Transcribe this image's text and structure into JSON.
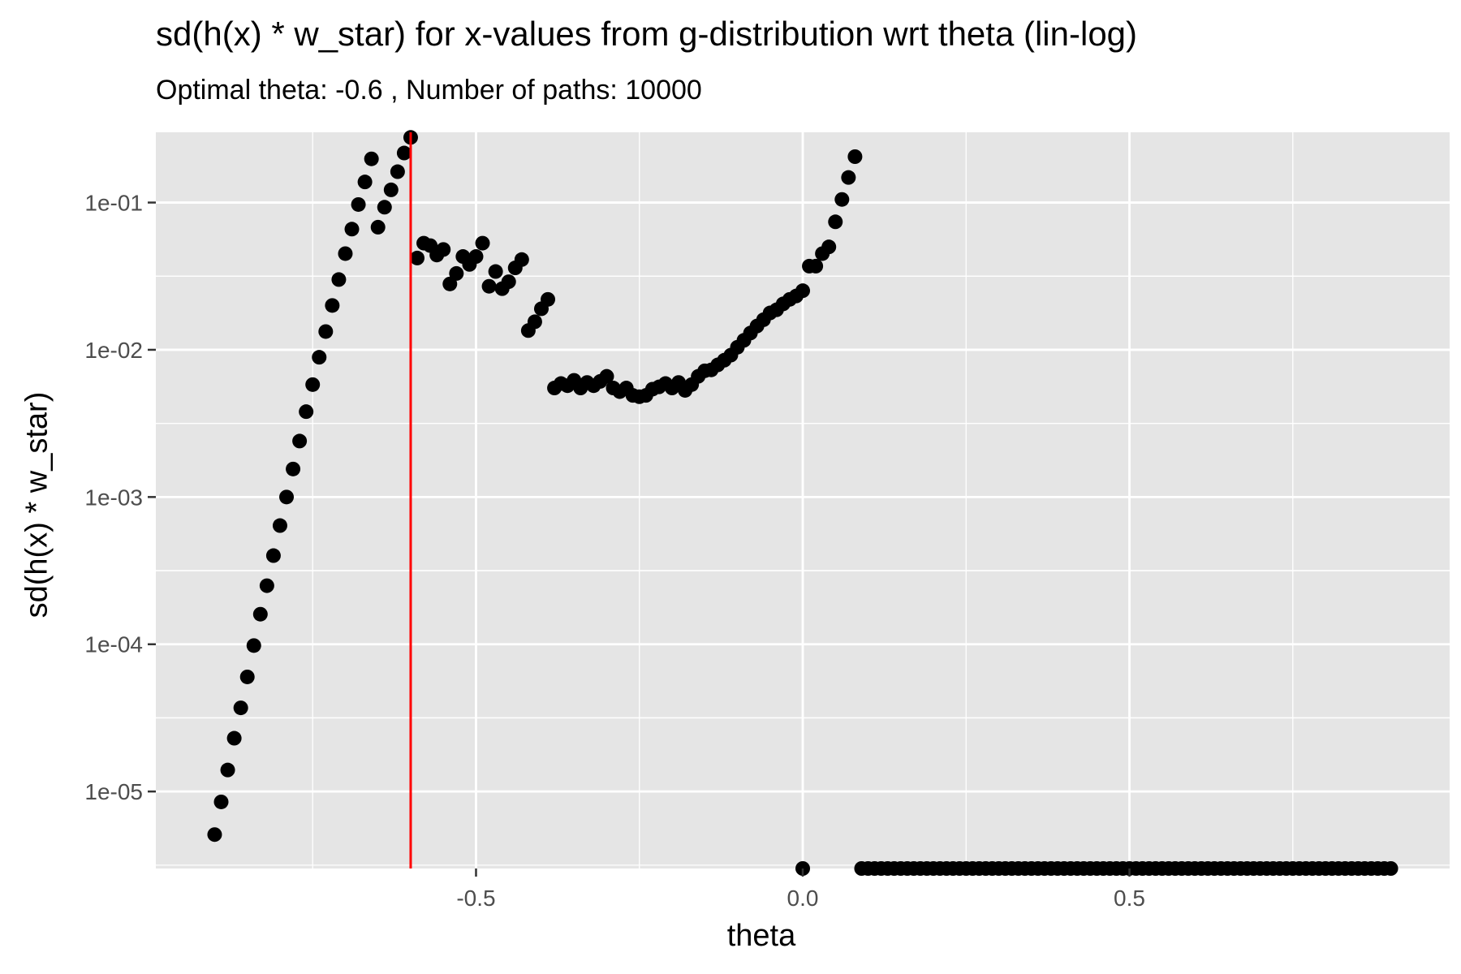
{
  "chart_data": {
    "type": "scatter",
    "title": "sd(h(x) * w_star) for x-values from g-distribution wrt theta (lin-log)",
    "subtitle": "Optimal theta:  -0.6 , Number of paths:  10000",
    "xlabel": "theta",
    "ylabel": "sd(h(x) * w_star)",
    "x_scale": "linear",
    "y_scale": "log10",
    "xlim": [
      -0.99,
      0.99
    ],
    "ylim": [
      3e-06,
      0.3
    ],
    "x_ticks": [
      -0.5,
      0.0,
      0.5
    ],
    "x_tick_labels": [
      "-0.5",
      "0.0",
      "0.5"
    ],
    "y_ticks": [
      1e-05,
      0.0001,
      0.001,
      0.01,
      0.1
    ],
    "y_tick_labels": [
      "1e-05",
      "1e-04",
      "1e-03",
      "1e-02",
      "1e-01"
    ],
    "grid": true,
    "vline": {
      "x": -0.6,
      "color": "#ff0000"
    },
    "point_color": "#000000",
    "panel_background": "#e5e5e5",
    "series": [
      {
        "points": [
          [
            -0.9,
            5.1e-06
          ],
          [
            -0.89,
            8.5e-06
          ],
          [
            -0.88,
            1.4e-05
          ],
          [
            -0.87,
            2.3e-05
          ],
          [
            -0.86,
            3.7e-05
          ],
          [
            -0.85,
            6e-05
          ],
          [
            -0.84,
            9.8e-05
          ],
          [
            -0.83,
            0.00016
          ],
          [
            -0.82,
            0.00025
          ],
          [
            -0.81,
            0.0004
          ],
          [
            -0.8,
            0.00064
          ],
          [
            -0.79,
            0.001
          ],
          [
            -0.78,
            0.00155
          ],
          [
            -0.77,
            0.0024
          ],
          [
            -0.76,
            0.0038
          ],
          [
            -0.75,
            0.0058
          ],
          [
            -0.74,
            0.0089
          ],
          [
            -0.73,
            0.0133
          ],
          [
            -0.72,
            0.02
          ],
          [
            -0.71,
            0.03
          ],
          [
            -0.7,
            0.045
          ],
          [
            -0.69,
            0.066
          ],
          [
            -0.68,
            0.097
          ],
          [
            -0.67,
            0.138
          ],
          [
            -0.66,
            0.198
          ],
          [
            -0.65,
            0.068
          ],
          [
            -0.64,
            0.093
          ],
          [
            -0.63,
            0.122
          ],
          [
            -0.62,
            0.162
          ],
          [
            -0.61,
            0.217
          ],
          [
            -0.6,
            0.277
          ],
          [
            -0.59,
            0.042
          ],
          [
            -0.58,
            0.053
          ],
          [
            -0.57,
            0.051
          ],
          [
            -0.56,
            0.044
          ],
          [
            -0.55,
            0.048
          ],
          [
            -0.54,
            0.028
          ],
          [
            -0.53,
            0.033
          ],
          [
            -0.52,
            0.043
          ],
          [
            -0.51,
            0.038
          ],
          [
            -0.5,
            0.043
          ],
          [
            -0.49,
            0.053
          ],
          [
            -0.48,
            0.027
          ],
          [
            -0.47,
            0.034
          ],
          [
            -0.46,
            0.026
          ],
          [
            -0.45,
            0.029
          ],
          [
            -0.44,
            0.036
          ],
          [
            -0.43,
            0.041
          ],
          [
            -0.42,
            0.0135
          ],
          [
            -0.41,
            0.0155
          ],
          [
            -0.4,
            0.019
          ],
          [
            -0.39,
            0.022
          ],
          [
            -0.38,
            0.0055
          ],
          [
            -0.37,
            0.0059
          ],
          [
            -0.36,
            0.0057
          ],
          [
            -0.35,
            0.0062
          ],
          [
            -0.34,
            0.0055
          ],
          [
            -0.33,
            0.006
          ],
          [
            -0.32,
            0.0057
          ],
          [
            -0.31,
            0.0061
          ],
          [
            -0.3,
            0.0066
          ],
          [
            -0.29,
            0.0055
          ],
          [
            -0.28,
            0.0052
          ],
          [
            -0.27,
            0.0055
          ],
          [
            -0.26,
            0.0049
          ],
          [
            -0.25,
            0.0048
          ],
          [
            -0.24,
            0.0049
          ],
          [
            -0.23,
            0.0054
          ],
          [
            -0.22,
            0.0056
          ],
          [
            -0.21,
            0.0059
          ],
          [
            -0.2,
            0.0055
          ],
          [
            -0.19,
            0.006
          ],
          [
            -0.18,
            0.0053
          ],
          [
            -0.17,
            0.0058
          ],
          [
            -0.16,
            0.0066
          ],
          [
            -0.15,
            0.0072
          ],
          [
            -0.14,
            0.0073
          ],
          [
            -0.13,
            0.0079
          ],
          [
            -0.12,
            0.0085
          ],
          [
            -0.11,
            0.0092
          ],
          [
            -0.1,
            0.0104
          ],
          [
            -0.09,
            0.0116
          ],
          [
            -0.08,
            0.013
          ],
          [
            -0.07,
            0.0145
          ],
          [
            -0.06,
            0.016
          ],
          [
            -0.05,
            0.0178
          ],
          [
            -0.04,
            0.0187
          ],
          [
            -0.03,
            0.0205
          ],
          [
            -0.02,
            0.022
          ],
          [
            -0.01,
            0.0232
          ],
          [
            0.0,
            0.0252
          ],
          [
            0.01,
            0.037
          ],
          [
            0.02,
            0.037
          ],
          [
            0.03,
            0.045
          ],
          [
            0.04,
            0.05
          ],
          [
            0.05,
            0.074
          ],
          [
            0.06,
            0.105
          ],
          [
            0.07,
            0.148
          ],
          [
            0.08,
            0.205
          ],
          [
            0.0,
            3e-06
          ],
          [
            0.09,
            3e-06
          ],
          [
            0.1,
            3e-06
          ],
          [
            0.11,
            3e-06
          ],
          [
            0.12,
            3e-06
          ],
          [
            0.13,
            3e-06
          ],
          [
            0.14,
            3e-06
          ],
          [
            0.15,
            3e-06
          ],
          [
            0.16,
            3e-06
          ],
          [
            0.17,
            3e-06
          ],
          [
            0.18,
            3e-06
          ],
          [
            0.19,
            3e-06
          ],
          [
            0.2,
            3e-06
          ],
          [
            0.21,
            3e-06
          ],
          [
            0.22,
            3e-06
          ],
          [
            0.23,
            3e-06
          ],
          [
            0.24,
            3e-06
          ],
          [
            0.25,
            3e-06
          ],
          [
            0.26,
            3e-06
          ],
          [
            0.27,
            3e-06
          ],
          [
            0.28,
            3e-06
          ],
          [
            0.29,
            3e-06
          ],
          [
            0.3,
            3e-06
          ],
          [
            0.31,
            3e-06
          ],
          [
            0.32,
            3e-06
          ],
          [
            0.33,
            3e-06
          ],
          [
            0.34,
            3e-06
          ],
          [
            0.35,
            3e-06
          ],
          [
            0.36,
            3e-06
          ],
          [
            0.37,
            3e-06
          ],
          [
            0.38,
            3e-06
          ],
          [
            0.39,
            3e-06
          ],
          [
            0.4,
            3e-06
          ],
          [
            0.41,
            3e-06
          ],
          [
            0.42,
            3e-06
          ],
          [
            0.43,
            3e-06
          ],
          [
            0.44,
            3e-06
          ],
          [
            0.45,
            3e-06
          ],
          [
            0.46,
            3e-06
          ],
          [
            0.47,
            3e-06
          ],
          [
            0.48,
            3e-06
          ],
          [
            0.49,
            3e-06
          ],
          [
            0.5,
            3e-06
          ],
          [
            0.51,
            3e-06
          ],
          [
            0.52,
            3e-06
          ],
          [
            0.53,
            3e-06
          ],
          [
            0.54,
            3e-06
          ],
          [
            0.55,
            3e-06
          ],
          [
            0.56,
            3e-06
          ],
          [
            0.57,
            3e-06
          ],
          [
            0.58,
            3e-06
          ],
          [
            0.59,
            3e-06
          ],
          [
            0.6,
            3e-06
          ],
          [
            0.61,
            3e-06
          ],
          [
            0.62,
            3e-06
          ],
          [
            0.63,
            3e-06
          ],
          [
            0.64,
            3e-06
          ],
          [
            0.65,
            3e-06
          ],
          [
            0.66,
            3e-06
          ],
          [
            0.67,
            3e-06
          ],
          [
            0.68,
            3e-06
          ],
          [
            0.69,
            3e-06
          ],
          [
            0.7,
            3e-06
          ],
          [
            0.71,
            3e-06
          ],
          [
            0.72,
            3e-06
          ],
          [
            0.73,
            3e-06
          ],
          [
            0.74,
            3e-06
          ],
          [
            0.75,
            3e-06
          ],
          [
            0.76,
            3e-06
          ],
          [
            0.77,
            3e-06
          ],
          [
            0.78,
            3e-06
          ],
          [
            0.79,
            3e-06
          ],
          [
            0.8,
            3e-06
          ],
          [
            0.81,
            3e-06
          ],
          [
            0.82,
            3e-06
          ],
          [
            0.83,
            3e-06
          ],
          [
            0.84,
            3e-06
          ],
          [
            0.85,
            3e-06
          ],
          [
            0.86,
            3e-06
          ],
          [
            0.87,
            3e-06
          ],
          [
            0.88,
            3e-06
          ],
          [
            0.89,
            3e-06
          ],
          [
            0.9,
            3e-06
          ]
        ]
      }
    ]
  }
}
